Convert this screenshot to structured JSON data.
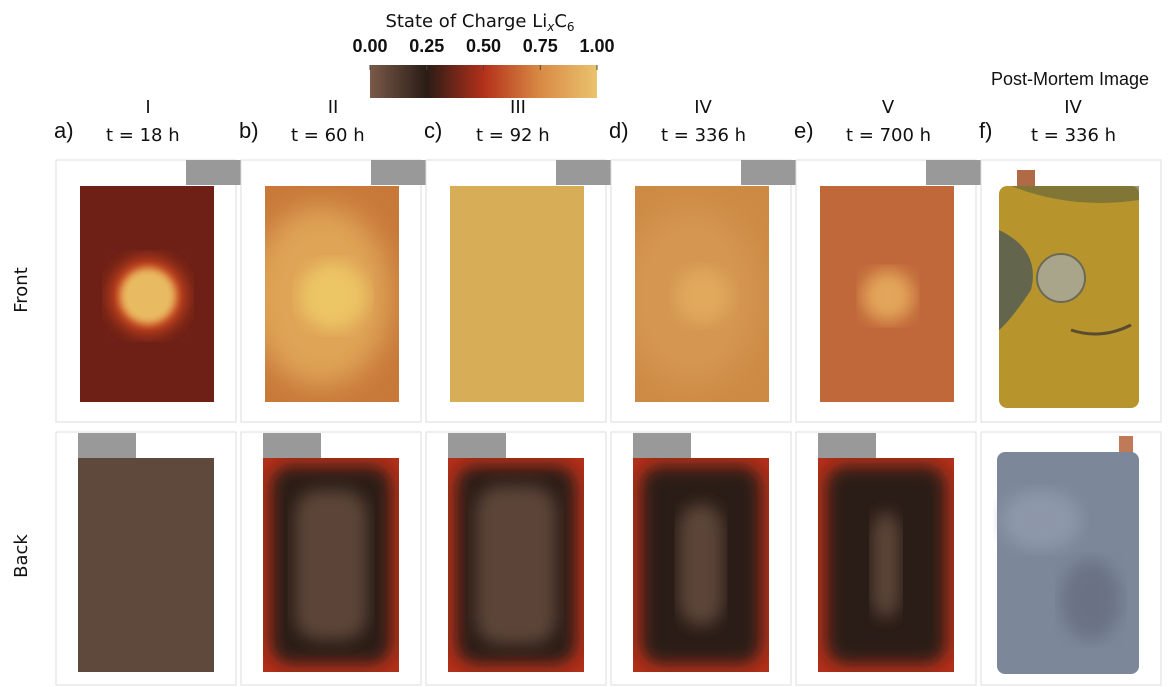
{
  "colorbar": {
    "title": "State of Charge Li",
    "title_sub": "x",
    "title_mid": "C",
    "title_sub2": "6",
    "ticks": [
      {
        "value": 0,
        "label": "0.00"
      },
      {
        "value": 0.25,
        "label": "0.25"
      },
      {
        "value": 0.5,
        "label": "0.50"
      },
      {
        "value": 0.75,
        "label": "0.75"
      },
      {
        "value": 1,
        "label": "1.00"
      }
    ],
    "lim": [
      0,
      1
    ]
  },
  "header": {
    "post_mortem": "Post-Mortem Image"
  },
  "panels": [
    {
      "letter": "a)",
      "stage": "I",
      "time": "t = 18 h"
    },
    {
      "letter": "b)",
      "stage": "II",
      "time": "t = 60 h"
    },
    {
      "letter": "c)",
      "stage": "III",
      "time": "t = 92 h"
    },
    {
      "letter": "d)",
      "stage": "IV",
      "time": "t = 336 h"
    },
    {
      "letter": "e)",
      "stage": "V",
      "time": "t = 700 h"
    },
    {
      "letter": "f)",
      "stage": "IV",
      "time": "t = 336 h"
    }
  ],
  "rows": [
    "Front",
    "Back"
  ]
}
